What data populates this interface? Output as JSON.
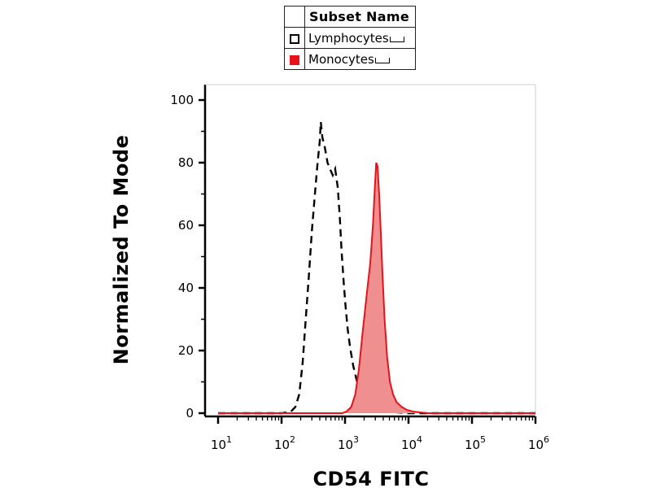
{
  "chart_data": {
    "type": "line",
    "xlabel": "CD54 FITC",
    "ylabel": "Normalized To Mode",
    "x_scale": "log",
    "xlim": [
      10,
      1000000
    ],
    "ylim": [
      0,
      100
    ],
    "y_ticks": [
      0,
      20,
      40,
      60,
      80,
      100
    ],
    "x_ticks": [
      {
        "value": 10,
        "base": "10",
        "exp": "1"
      },
      {
        "value": 100,
        "base": "10",
        "exp": "2"
      },
      {
        "value": 1000,
        "base": "10",
        "exp": "3"
      },
      {
        "value": 10000,
        "base": "10",
        "exp": "4"
      },
      {
        "value": 100000,
        "base": "10",
        "exp": "5"
      },
      {
        "value": 1000000,
        "base": "10",
        "exp": "6"
      }
    ],
    "legend": {
      "title": "Subset Name",
      "position": "top"
    },
    "series": [
      {
        "name": "Lymphocytes",
        "style": "dashed",
        "fill": false,
        "color": "#000000",
        "x": [
          10,
          100,
          140,
          165,
          190,
          215,
          240,
          270,
          300,
          335,
          370,
          400,
          415,
          440,
          480,
          530,
          580,
          640,
          700,
          770,
          830,
          880,
          950,
          1020,
          1100,
          1200,
          1350,
          1550,
          1800,
          2100,
          2500,
          3100,
          4000,
          6000,
          10000,
          100000,
          1000000
        ],
        "y": [
          0,
          0,
          0.5,
          2,
          6,
          16,
          30,
          44,
          58,
          70,
          80,
          87,
          93,
          88,
          85,
          80,
          78,
          76,
          78,
          72,
          62,
          52,
          42,
          34,
          27,
          21,
          15,
          10,
          6,
          4,
          2.5,
          1.5,
          0.8,
          0.3,
          0,
          0,
          0
        ]
      },
      {
        "name": "Monocytes",
        "style": "solid",
        "fill": true,
        "color": "#e8121a",
        "fill_color": "#f08f8f",
        "x": [
          10,
          500,
          900,
          1050,
          1250,
          1450,
          1650,
          1900,
          2200,
          2500,
          2750,
          2950,
          3100,
          3250,
          3450,
          3650,
          3900,
          4200,
          4600,
          5100,
          5700,
          6500,
          7800,
          9500,
          12000,
          20000,
          100000,
          1000000
        ],
        "y": [
          0,
          0,
          0,
          0.5,
          2,
          6,
          14,
          26,
          38,
          48,
          60,
          72,
          80,
          79,
          70,
          58,
          44,
          30,
          18,
          10,
          6,
          3.5,
          2,
          1,
          0.5,
          0,
          0,
          0
        ]
      }
    ],
    "grid": false
  },
  "legend_title": "Subset Name",
  "legend_items": [
    {
      "label": "Lymphocytes",
      "swatch": "open"
    },
    {
      "label": "Monocytes",
      "swatch": "filled"
    }
  ]
}
